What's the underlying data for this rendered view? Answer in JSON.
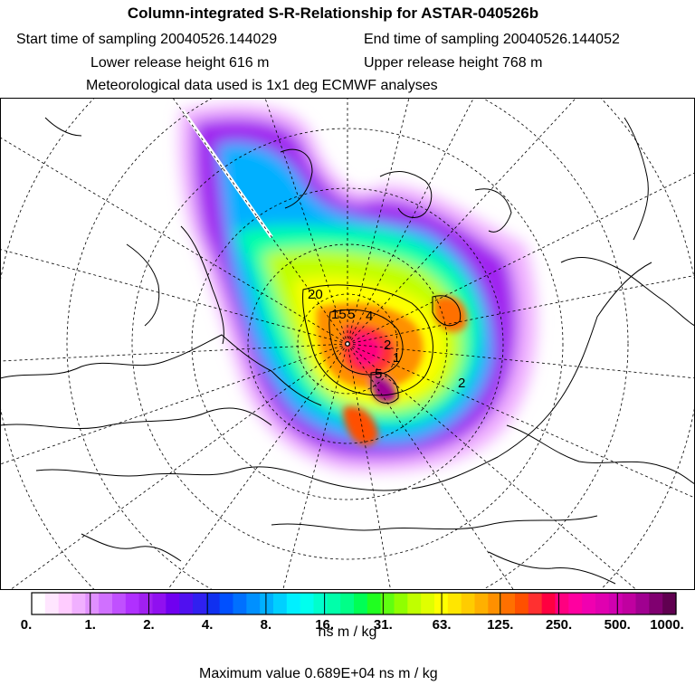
{
  "header": {
    "title": "Column-integrated S-R-Relationship for ASTAR-040526b",
    "start_label": "Start time of sampling 20040526.144029",
    "end_label": "End time of sampling 20040526.144052",
    "lower_label": "Lower release height  616 m",
    "upper_label": "Upper release height  768 m",
    "met_label": "Meteorological data used is 1x1 deg ECMWF analyses"
  },
  "map": {
    "contour_labels": [
      "20",
      "15",
      "5",
      "4",
      "2",
      "1",
      "5",
      "2"
    ]
  },
  "legend": {
    "ticks": [
      "0.",
      "1.",
      "2.",
      "4.",
      "8.",
      "16.",
      "31.",
      "63.",
      "125.",
      "250.",
      "500.",
      "1000."
    ],
    "unit": "ns m / kg",
    "colors": [
      "#ffffff",
      "#ffe6ff",
      "#ffccff",
      "#f0b0ff",
      "#e090ff",
      "#d070ff",
      "#c050ff",
      "#b030ff",
      "#a020f0",
      "#9010f0",
      "#7000f0",
      "#5010f0",
      "#3020f0",
      "#1030f0",
      "#0050ff",
      "#0070ff",
      "#0090ff",
      "#00b0ff",
      "#00d0ff",
      "#00f0ff",
      "#00ffee",
      "#00ffcc",
      "#00ffaa",
      "#00ff88",
      "#00ff55",
      "#20ff20",
      "#60ff10",
      "#90ff00",
      "#c0ff00",
      "#e0ff00",
      "#ffff00",
      "#ffe600",
      "#ffcc00",
      "#ffb000",
      "#ff9000",
      "#ff7000",
      "#ff5000",
      "#ff3030",
      "#ff0040",
      "#ff0080",
      "#ff00a0",
      "#f000b0",
      "#e000b0",
      "#d000b0",
      "#c000a0",
      "#a00090",
      "#800070",
      "#600050"
    ]
  },
  "footer": {
    "max_label": "Maximum value  0.689E+04 ns m / kg"
  }
}
